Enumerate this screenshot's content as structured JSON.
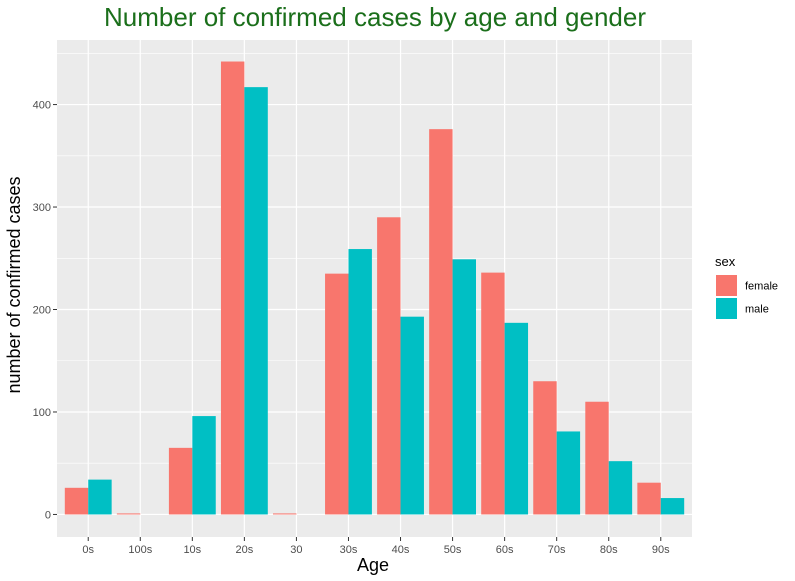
{
  "chart_data": {
    "type": "bar",
    "title": "Number of confirmed cases by age and gender",
    "xlabel": "Age",
    "ylabel": "number of confirmed cases",
    "categories": [
      "0s",
      "100s",
      "10s",
      "20s",
      "30",
      "30s",
      "40s",
      "50s",
      "60s",
      "70s",
      "80s",
      "90s"
    ],
    "series": [
      {
        "name": "female",
        "color": "#F8766D",
        "values": [
          26,
          1,
          65,
          442,
          1,
          235,
          290,
          376,
          236,
          130,
          110,
          31
        ]
      },
      {
        "name": "male",
        "color": "#00BFC4",
        "values": [
          34,
          null,
          96,
          417,
          null,
          259,
          193,
          249,
          187,
          81,
          52,
          16
        ]
      }
    ],
    "yticks": [
      0,
      100,
      200,
      300,
      400
    ],
    "ylim": [
      -22,
      463
    ],
    "legend": {
      "title": "sex",
      "position": "right"
    },
    "grid": true,
    "colors": {
      "panel": "#EBEBEB",
      "grid": "#FFFFFF",
      "title": "#1b6f1b"
    }
  }
}
